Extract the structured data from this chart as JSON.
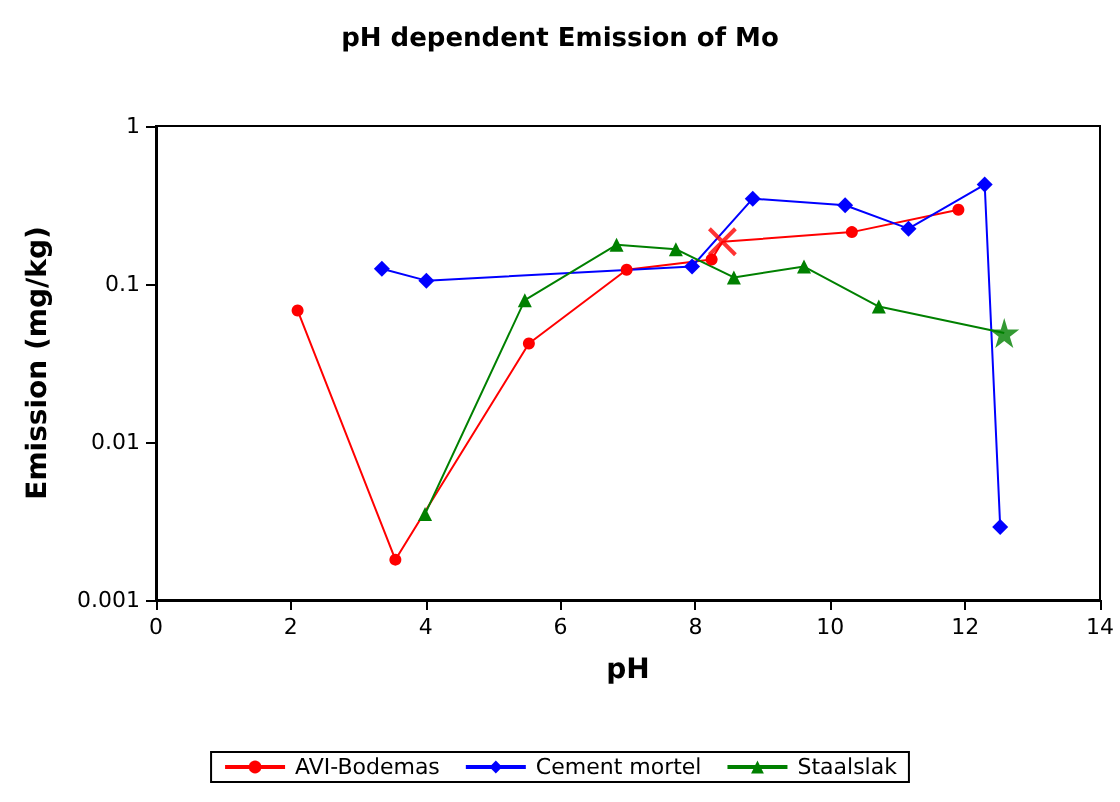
{
  "chart_data": {
    "type": "line",
    "title": "pH dependent Emission of Mo",
    "xlabel": "pH",
    "ylabel": "Emission (mg/kg)",
    "log": "y",
    "xlim": [
      0,
      14
    ],
    "xticks": [
      0,
      2,
      4,
      6,
      8,
      10,
      12,
      14
    ],
    "ylim": [
      0.001,
      1
    ],
    "yticks": [
      0.001,
      0.01,
      0.1,
      1
    ],
    "grid": false,
    "legend": "bottom",
    "series": [
      {
        "name": "AVI-Bodemas",
        "color": "#ff0000",
        "marker": "circle",
        "x": [
          2.1,
          3.55,
          5.53,
          6.98,
          8.24,
          8.4,
          10.32,
          11.9
        ],
        "values": [
          0.068,
          0.0018,
          0.042,
          0.123,
          0.143,
          0.185,
          0.213,
          0.295
        ]
      },
      {
        "name": "Cement mortel",
        "color": "#0000ff",
        "marker": "diamond",
        "x": [
          3.35,
          4.01,
          7.95,
          8.85,
          10.22,
          11.16,
          12.29,
          12.52
        ],
        "values": [
          0.125,
          0.105,
          0.129,
          0.347,
          0.315,
          0.224,
          0.426,
          0.0029
        ]
      },
      {
        "name": "Staalslak",
        "color": "#008000",
        "marker": "triangle",
        "x": [
          3.99,
          5.47,
          6.83,
          7.71,
          8.57,
          9.61,
          10.72,
          12.58
        ],
        "values": [
          0.0035,
          0.079,
          0.177,
          0.166,
          0.11,
          0.129,
          0.072,
          0.049
        ]
      },
      {
        "type": "scatter",
        "color": "#ff0000",
        "marker": "cross",
        "x": [
          8.4
        ],
        "values": [
          0.185
        ]
      },
      {
        "type": "scatter",
        "color": "#008000",
        "marker": "star",
        "x": [
          12.58
        ],
        "values": [
          0.049
        ]
      }
    ]
  }
}
